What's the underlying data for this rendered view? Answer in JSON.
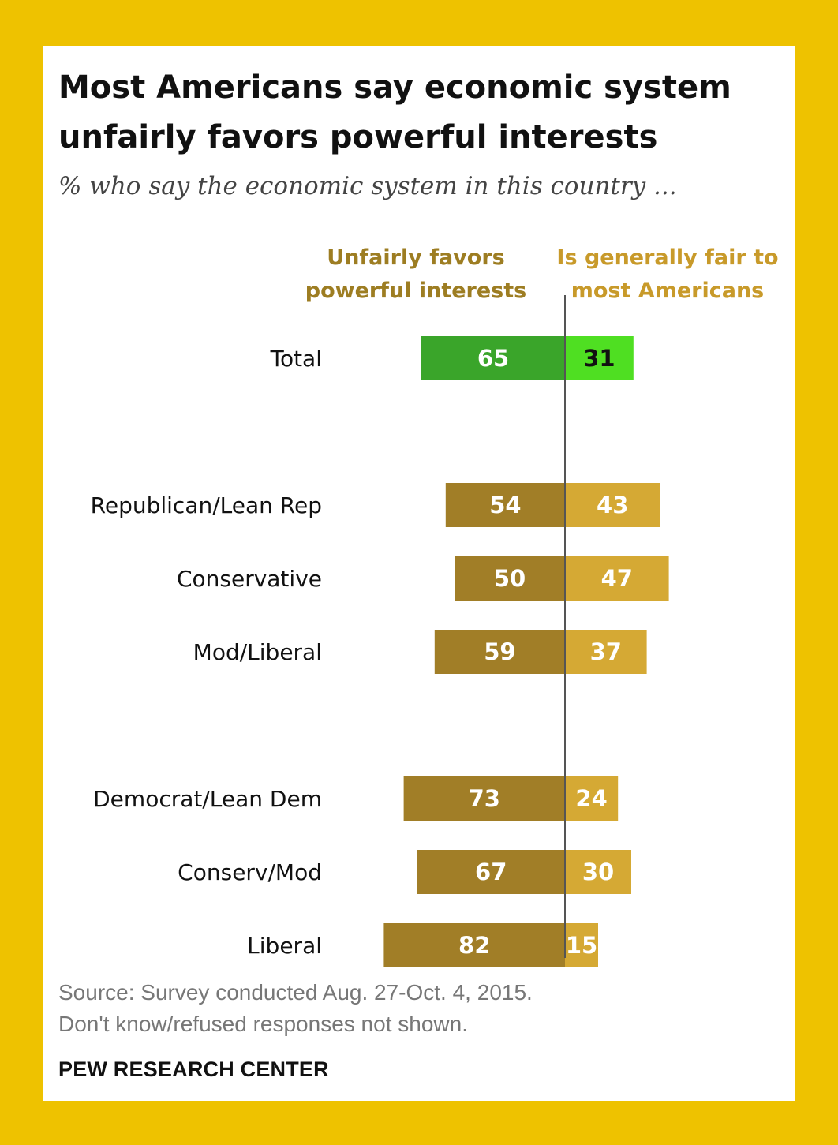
{
  "header": {
    "title": "Most Americans say economic system unfairly favors powerful interests",
    "subtitle": "% who say the economic system in this country ..."
  },
  "chart_data": {
    "type": "bar",
    "orientation": "horizontal-diverging",
    "categories": [
      "Total",
      "Republican/Lean Rep",
      "Conservative",
      "Mod/Liberal",
      "Democrat/Lean Dem",
      "Conserv/Mod",
      "Liberal"
    ],
    "series": [
      {
        "name": "Unfairly favors powerful interests",
        "values": [
          65,
          54,
          50,
          59,
          73,
          67,
          82
        ],
        "direction": "left"
      },
      {
        "name": "Is generally fair to most Americans",
        "values": [
          31,
          43,
          47,
          37,
          24,
          30,
          15
        ],
        "direction": "right"
      }
    ],
    "groups": [
      [
        0
      ],
      [
        1,
        2,
        3
      ],
      [
        4,
        5,
        6
      ]
    ],
    "colors": {
      "total_left": "#3aa52a",
      "total_right": "#4fdf22",
      "left": "#a17e27",
      "right": "#d5a934",
      "axis": "#555555"
    },
    "legend_position": "top",
    "grid": false
  },
  "footer": {
    "source_line1": "Source: Survey conducted Aug. 27-Oct. 4, 2015.",
    "source_line2": "Don't know/refused responses not shown.",
    "brand": "PEW RESEARCH CENTER"
  }
}
